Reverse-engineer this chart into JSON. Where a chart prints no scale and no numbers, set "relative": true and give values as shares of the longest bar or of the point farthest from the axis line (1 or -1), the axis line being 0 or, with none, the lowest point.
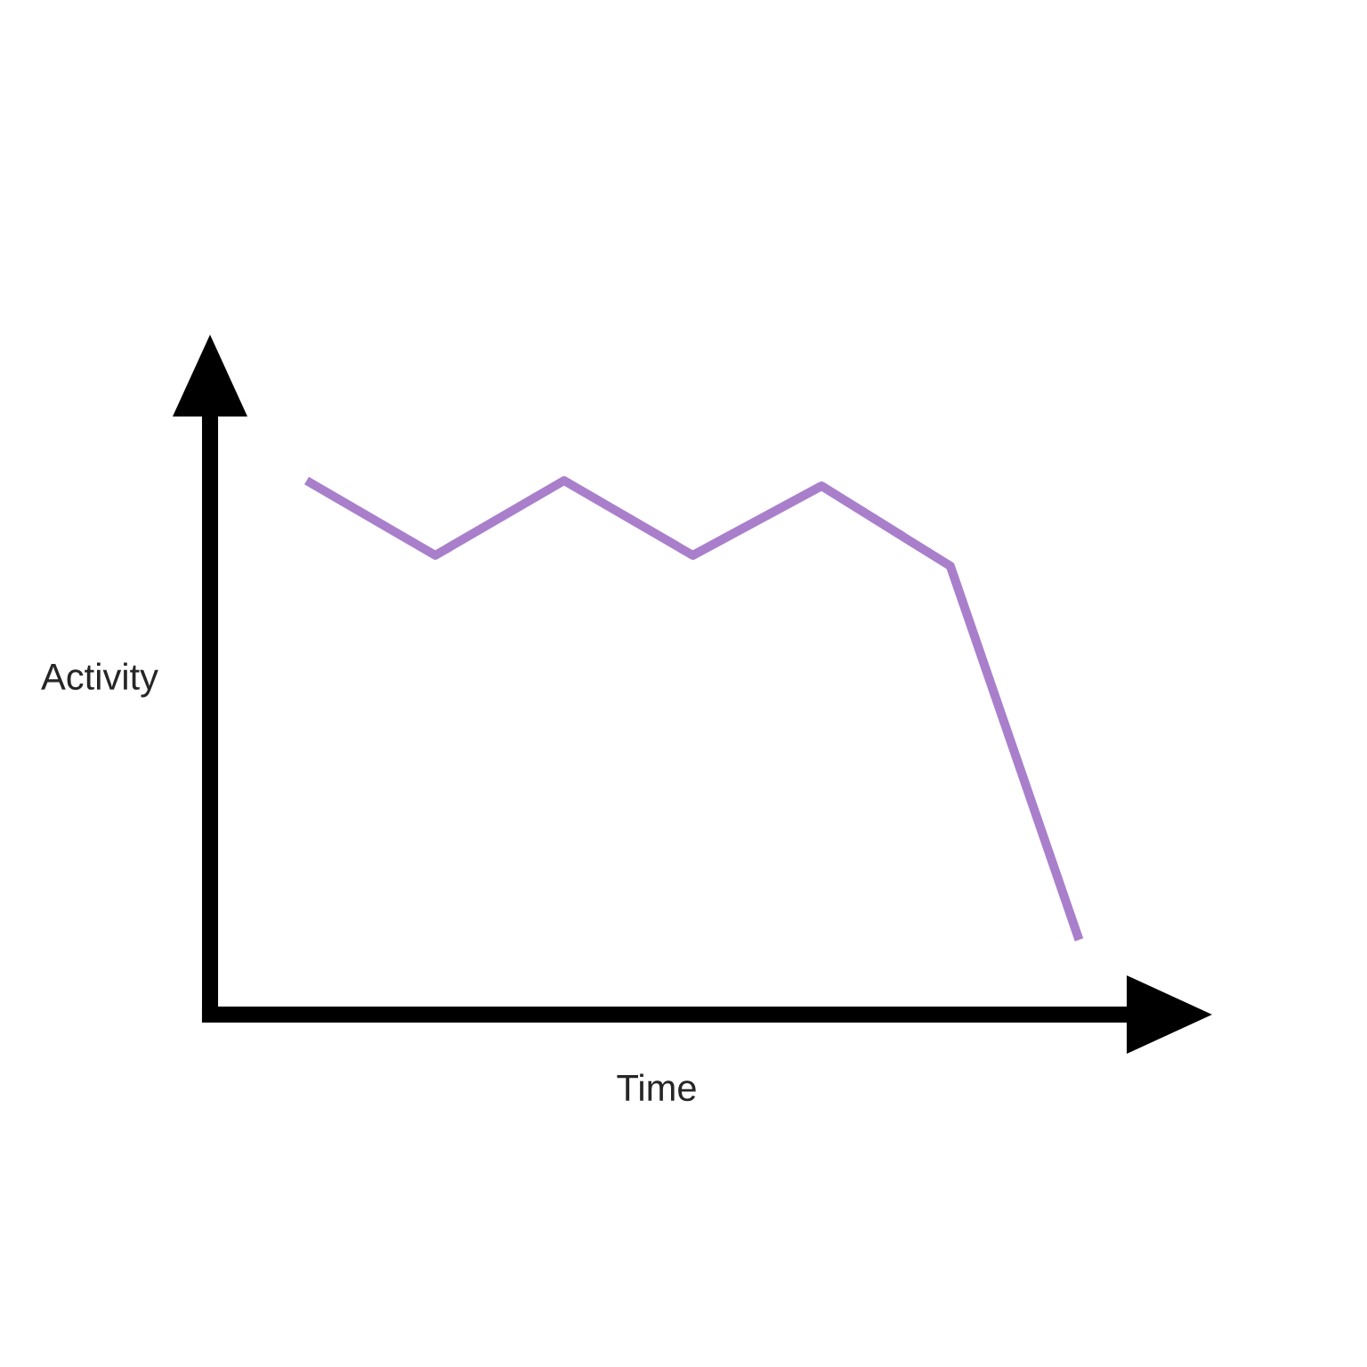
{
  "chart_data": {
    "type": "line",
    "xlabel": "Time",
    "ylabel": "Activity",
    "relative": true,
    "line_style": "solid",
    "categories": [
      null,
      null,
      null,
      null,
      null,
      null,
      null
    ],
    "series": [
      {
        "color": "#a97fcb",
        "values": [
          1,
          0.86,
          1,
          0.86,
          0.99,
          0.84,
          0.14
        ]
      }
    ]
  }
}
